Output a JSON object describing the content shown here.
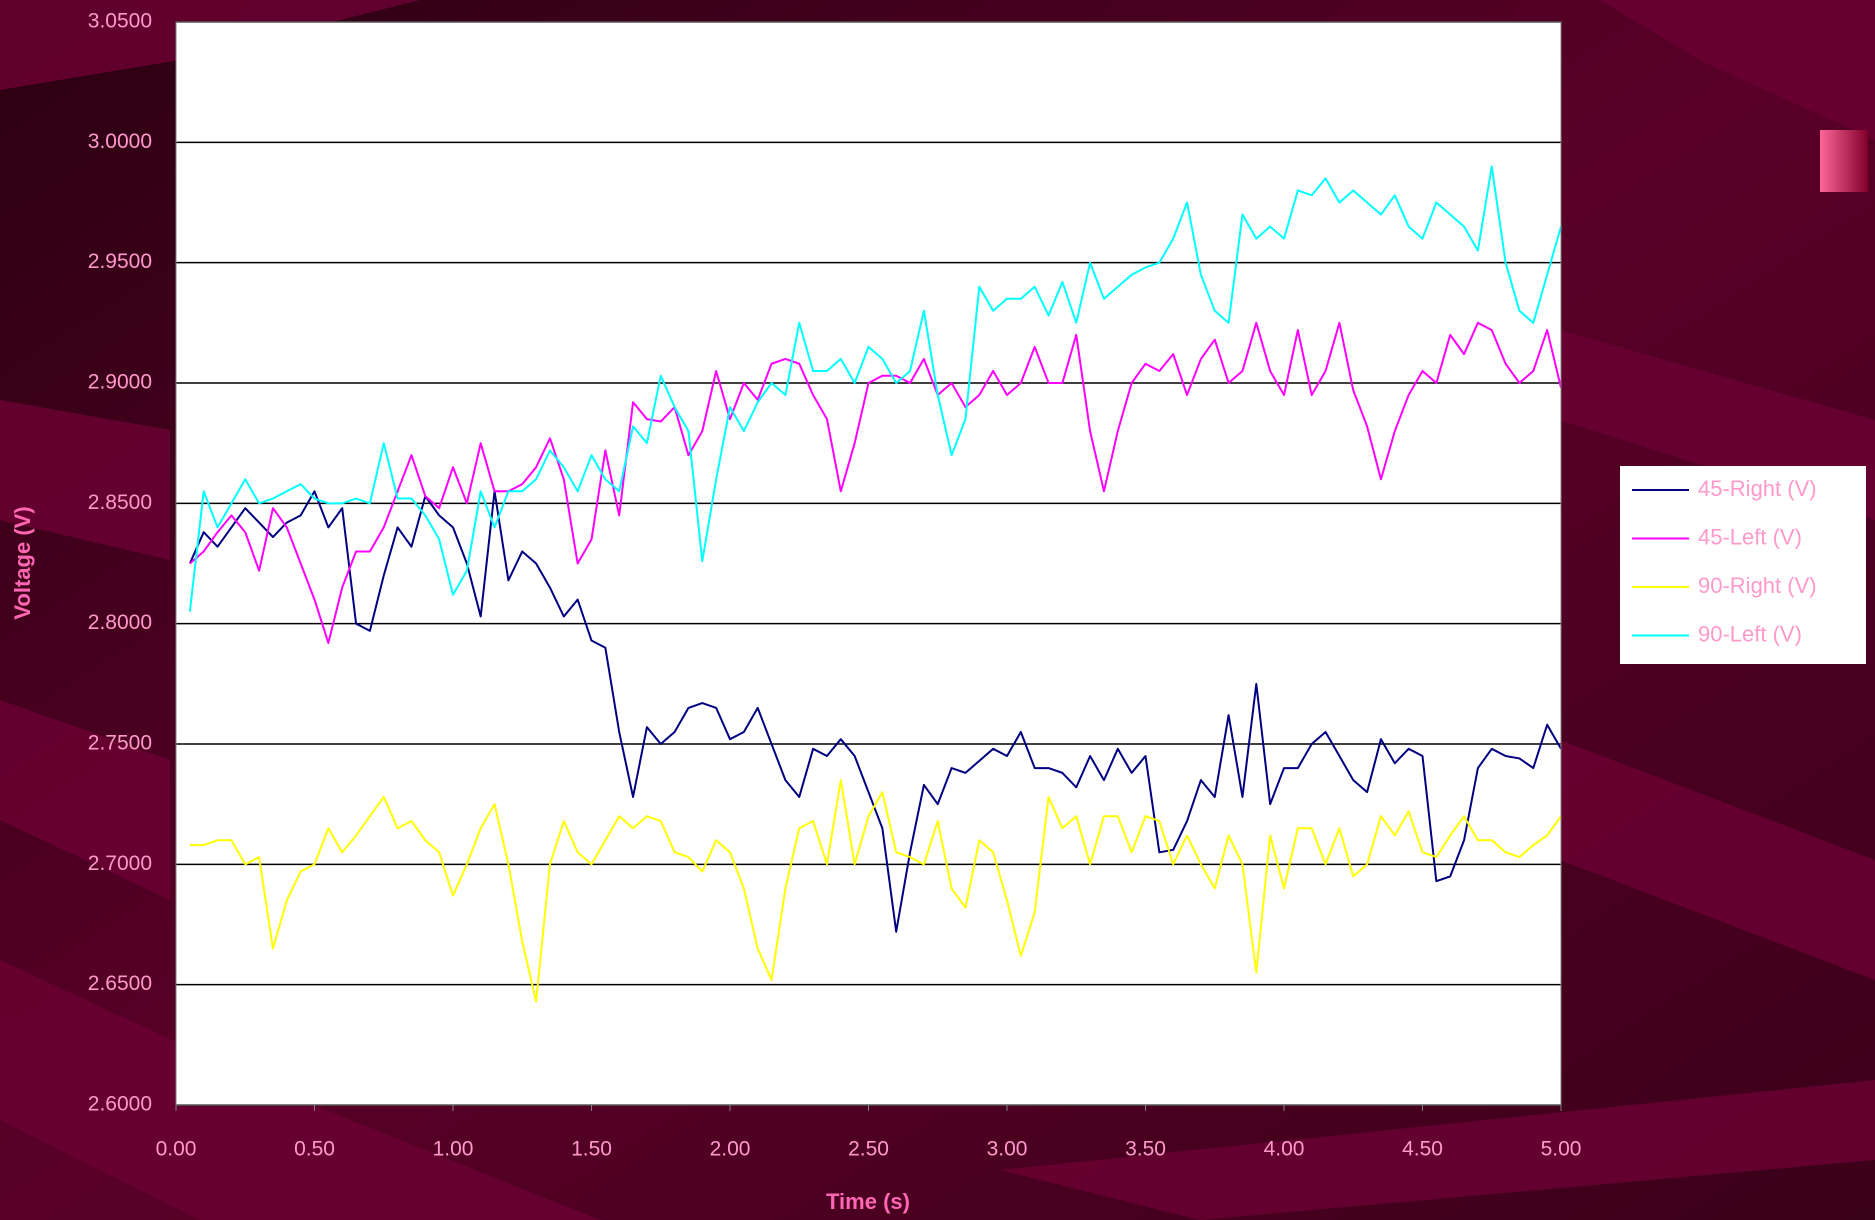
{
  "chart_data": {
    "type": "line",
    "xlabel": "Time (s)",
    "ylabel": "Voltage (V)",
    "x": [
      0.05,
      0.1,
      0.15,
      0.2,
      0.25,
      0.3,
      0.35,
      0.4,
      0.45,
      0.5,
      0.55,
      0.6,
      0.65,
      0.7,
      0.75,
      0.8,
      0.85,
      0.9,
      0.95,
      1.0,
      1.05,
      1.1,
      1.15,
      1.2,
      1.25,
      1.3,
      1.35,
      1.4,
      1.45,
      1.5,
      1.55,
      1.6,
      1.65,
      1.7,
      1.75,
      1.8,
      1.85,
      1.9,
      1.95,
      2.0,
      2.05,
      2.1,
      2.15,
      2.2,
      2.25,
      2.3,
      2.35,
      2.4,
      2.45,
      2.5,
      2.55,
      2.6,
      2.65,
      2.7,
      2.75,
      2.8,
      2.85,
      2.9,
      2.95,
      3.0,
      3.05,
      3.1,
      3.15,
      3.2,
      3.25,
      3.3,
      3.35,
      3.4,
      3.45,
      3.5,
      3.55,
      3.6,
      3.65,
      3.7,
      3.75,
      3.8,
      3.85,
      3.9,
      3.95,
      4.0,
      4.05,
      4.1,
      4.15,
      4.2,
      4.25,
      4.3,
      4.35,
      4.4,
      4.45,
      4.5,
      4.55,
      4.6,
      4.65,
      4.7,
      4.75,
      4.8,
      4.85,
      4.9,
      4.95,
      5.0
    ],
    "series": [
      {
        "name": "45-Right (V)",
        "color": "#000080",
        "values": [
          2.825,
          2.838,
          2.832,
          2.84,
          2.848,
          2.842,
          2.836,
          2.842,
          2.845,
          2.855,
          2.84,
          2.848,
          2.8,
          2.797,
          2.82,
          2.84,
          2.832,
          2.853,
          2.845,
          2.84,
          2.825,
          2.803,
          2.855,
          2.818,
          2.83,
          2.825,
          2.815,
          2.803,
          2.81,
          2.793,
          2.79,
          2.755,
          2.728,
          2.757,
          2.75,
          2.755,
          2.765,
          2.767,
          2.765,
          2.752,
          2.755,
          2.765,
          2.75,
          2.735,
          2.728,
          2.748,
          2.745,
          2.752,
          2.745,
          2.73,
          2.715,
          2.672,
          2.705,
          2.733,
          2.725,
          2.74,
          2.738,
          2.743,
          2.748,
          2.745,
          2.755,
          2.74,
          2.74,
          2.738,
          2.732,
          2.745,
          2.735,
          2.748,
          2.738,
          2.745,
          2.705,
          2.706,
          2.718,
          2.735,
          2.728,
          2.762,
          2.728,
          2.775,
          2.725,
          2.74,
          2.74,
          2.75,
          2.755,
          2.745,
          2.735,
          2.73,
          2.752,
          2.742,
          2.748,
          2.745,
          2.693,
          2.695,
          2.71,
          2.74,
          2.748,
          2.745,
          2.744,
          2.74,
          2.758,
          2.748
        ]
      },
      {
        "name": "45-Left (V)",
        "color": "#ff00ff",
        "values": [
          2.825,
          2.83,
          2.838,
          2.845,
          2.838,
          2.822,
          2.848,
          2.84,
          2.825,
          2.81,
          2.792,
          2.815,
          2.83,
          2.83,
          2.84,
          2.855,
          2.87,
          2.853,
          2.848,
          2.865,
          2.85,
          2.875,
          2.855,
          2.855,
          2.858,
          2.865,
          2.877,
          2.86,
          2.825,
          2.835,
          2.872,
          2.845,
          2.892,
          2.885,
          2.884,
          2.89,
          2.87,
          2.88,
          2.905,
          2.885,
          2.9,
          2.893,
          2.908,
          2.91,
          2.908,
          2.895,
          2.885,
          2.855,
          2.875,
          2.9,
          2.903,
          2.903,
          2.9,
          2.91,
          2.895,
          2.9,
          2.89,
          2.895,
          2.905,
          2.895,
          2.9,
          2.915,
          2.9,
          2.9,
          2.92,
          2.88,
          2.855,
          2.88,
          2.9,
          2.908,
          2.905,
          2.912,
          2.895,
          2.91,
          2.918,
          2.9,
          2.905,
          2.925,
          2.905,
          2.895,
          2.922,
          2.895,
          2.905,
          2.925,
          2.897,
          2.882,
          2.86,
          2.88,
          2.895,
          2.905,
          2.9,
          2.92,
          2.912,
          2.925,
          2.922,
          2.908,
          2.9,
          2.905,
          2.922,
          2.898
        ]
      },
      {
        "name": "90-Right (V)",
        "color": "#ffff00",
        "values": [
          2.708,
          2.708,
          2.71,
          2.71,
          2.7,
          2.703,
          2.665,
          2.685,
          2.697,
          2.7,
          2.715,
          2.705,
          2.712,
          2.72,
          2.728,
          2.715,
          2.718,
          2.71,
          2.705,
          2.687,
          2.7,
          2.715,
          2.725,
          2.7,
          2.668,
          2.643,
          2.7,
          2.718,
          2.705,
          2.7,
          2.71,
          2.72,
          2.715,
          2.72,
          2.718,
          2.705,
          2.703,
          2.697,
          2.71,
          2.705,
          2.69,
          2.665,
          2.652,
          2.69,
          2.715,
          2.718,
          2.7,
          2.735,
          2.7,
          2.72,
          2.73,
          2.705,
          2.703,
          2.7,
          2.718,
          2.69,
          2.682,
          2.71,
          2.705,
          2.685,
          2.662,
          2.68,
          2.728,
          2.715,
          2.72,
          2.7,
          2.72,
          2.72,
          2.705,
          2.72,
          2.718,
          2.7,
          2.712,
          2.7,
          2.69,
          2.712,
          2.7,
          2.655,
          2.712,
          2.69,
          2.715,
          2.715,
          2.7,
          2.715,
          2.695,
          2.7,
          2.72,
          2.712,
          2.722,
          2.705,
          2.703,
          2.712,
          2.72,
          2.71,
          2.71,
          2.705,
          2.703,
          2.708,
          2.712,
          2.72
        ]
      },
      {
        "name": "90-Left (V)",
        "color": "#00ffff",
        "values": [
          2.805,
          2.855,
          2.84,
          2.85,
          2.86,
          2.85,
          2.852,
          2.855,
          2.858,
          2.852,
          2.85,
          2.85,
          2.852,
          2.85,
          2.875,
          2.852,
          2.852,
          2.845,
          2.835,
          2.812,
          2.822,
          2.855,
          2.84,
          2.855,
          2.855,
          2.86,
          2.872,
          2.865,
          2.855,
          2.87,
          2.86,
          2.855,
          2.882,
          2.875,
          2.903,
          2.89,
          2.88,
          2.826,
          2.86,
          2.89,
          2.88,
          2.892,
          2.9,
          2.895,
          2.925,
          2.905,
          2.905,
          2.91,
          2.9,
          2.915,
          2.91,
          2.9,
          2.905,
          2.93,
          2.895,
          2.87,
          2.885,
          2.94,
          2.93,
          2.935,
          2.935,
          2.94,
          2.928,
          2.942,
          2.925,
          2.95,
          2.935,
          2.94,
          2.945,
          2.948,
          2.95,
          2.96,
          2.975,
          2.945,
          2.93,
          2.925,
          2.97,
          2.96,
          2.965,
          2.96,
          2.98,
          2.978,
          2.985,
          2.975,
          2.98,
          2.975,
          2.97,
          2.978,
          2.965,
          2.96,
          2.975,
          2.97,
          2.965,
          2.955,
          2.99,
          2.95,
          2.93,
          2.925,
          2.945,
          2.965
        ]
      }
    ],
    "xlim": [
      0,
      5
    ],
    "xticks": [
      {
        "value": 0,
        "label": "0.00"
      },
      {
        "value": 0.5,
        "label": "0.50"
      },
      {
        "value": 1,
        "label": "1.00"
      },
      {
        "value": 1.5,
        "label": "1.50"
      },
      {
        "value": 2,
        "label": "2.00"
      },
      {
        "value": 2.5,
        "label": "2.50"
      },
      {
        "value": 3,
        "label": "3.00"
      },
      {
        "value": 3.5,
        "label": "3.50"
      },
      {
        "value": 4,
        "label": "4.00"
      },
      {
        "value": 4.5,
        "label": "4.50"
      },
      {
        "value": 5,
        "label": "5.00"
      }
    ],
    "ylim": [
      2.6,
      3.05
    ],
    "yticks": [
      {
        "value": 2.6,
        "label": "2.6000"
      },
      {
        "value": 2.65,
        "label": "2.6500"
      },
      {
        "value": 2.7,
        "label": "2.7000"
      },
      {
        "value": 2.75,
        "label": "2.7500"
      },
      {
        "value": 2.8,
        "label": "2.8000"
      },
      {
        "value": 2.85,
        "label": "2.8500"
      },
      {
        "value": 2.9,
        "label": "2.9000"
      },
      {
        "value": 2.95,
        "label": "2.9500"
      },
      {
        "value": 3.0,
        "label": "3.0000"
      },
      {
        "value": 3.05,
        "label": "3.0500"
      }
    ],
    "grid": true,
    "legend": "right"
  }
}
